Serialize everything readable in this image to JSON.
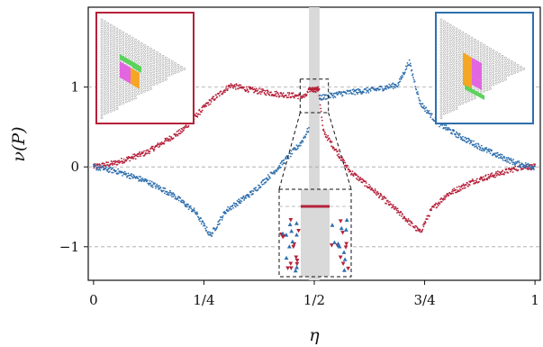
{
  "chart_data": {
    "type": "scatter",
    "xlabel": "η",
    "ylabel": "ν(P)",
    "xlim": [
      -0.012,
      1.012
    ],
    "ylim": [
      -1.42,
      2.0
    ],
    "x_ticks": [
      {
        "value": 0,
        "label": "0"
      },
      {
        "value": 0.25,
        "label": "1/4"
      },
      {
        "value": 0.5,
        "label": "1/2"
      },
      {
        "value": 0.75,
        "label": "3/4"
      },
      {
        "value": 1,
        "label": "1"
      }
    ],
    "y_ticks": [
      {
        "value": -1,
        "label": "−1"
      },
      {
        "value": 0,
        "label": "0"
      },
      {
        "value": 1,
        "label": "1"
      }
    ],
    "grid": "horizontal dashed at y = -1, 0, 1",
    "shaded_band": {
      "x_range": [
        0.488,
        0.512
      ],
      "color": "#d9d9d9"
    },
    "series": [
      {
        "color": "#b5213a",
        "key_points": [
          [
            0,
            0
          ],
          [
            0.05,
            0.05
          ],
          [
            0.12,
            0.18
          ],
          [
            0.2,
            0.45
          ],
          [
            0.26,
            0.8
          ],
          [
            0.31,
            1.02
          ],
          [
            0.36,
            0.96
          ],
          [
            0.42,
            0.91
          ],
          [
            0.48,
            0.88
          ],
          [
            0.49,
            0.97
          ],
          [
            0.51,
            0.97
          ],
          [
            0.52,
            0.45
          ],
          [
            0.58,
            -0.05
          ],
          [
            0.64,
            -0.32
          ],
          [
            0.69,
            -0.56
          ],
          [
            0.74,
            -0.82
          ],
          [
            0.765,
            -0.54
          ],
          [
            0.8,
            -0.35
          ],
          [
            0.86,
            -0.18
          ],
          [
            0.92,
            -0.08
          ],
          [
            0.97,
            0.0
          ],
          [
            1.0,
            0.0
          ]
        ]
      },
      {
        "color": "#2f6fad",
        "key_points": [
          [
            0,
            0
          ],
          [
            0.05,
            -0.05
          ],
          [
            0.12,
            -0.18
          ],
          [
            0.18,
            -0.35
          ],
          [
            0.23,
            -0.56
          ],
          [
            0.265,
            -0.86
          ],
          [
            0.3,
            -0.55
          ],
          [
            0.36,
            -0.32
          ],
          [
            0.42,
            0.0
          ],
          [
            0.47,
            0.3
          ],
          [
            0.49,
            0.5
          ],
          [
            0.51,
            0.86
          ],
          [
            0.56,
            0.92
          ],
          [
            0.64,
            0.97
          ],
          [
            0.69,
            1.03
          ],
          [
            0.715,
            1.32
          ],
          [
            0.74,
            0.8
          ],
          [
            0.78,
            0.55
          ],
          [
            0.83,
            0.38
          ],
          [
            0.9,
            0.18
          ],
          [
            0.96,
            0.04
          ],
          [
            1.0,
            0.0
          ]
        ]
      }
    ],
    "zoom_box": {
      "x_range": [
        0.468,
        0.532
      ],
      "y_range": [
        0.68,
        1.1
      ]
    },
    "inset_left_colors": [
      "#5cd35c",
      "#e266e0",
      "#f5a623"
    ],
    "inset_right_colors": [
      "#f5a623",
      "#e266e0",
      "#5cd35c"
    ],
    "inset_left_frame": "#b5213a",
    "inset_right_frame": "#2f6fad"
  }
}
